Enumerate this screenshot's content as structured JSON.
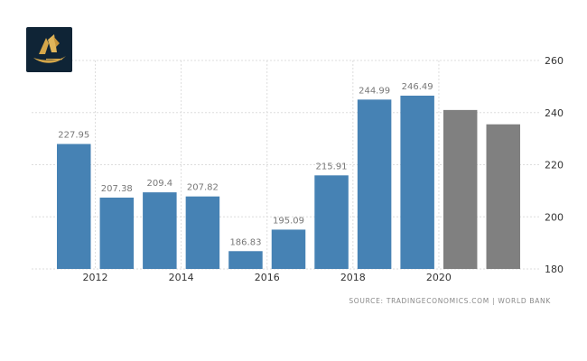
{
  "chart_data": {
    "type": "bar",
    "categories": [
      "2011",
      "2012",
      "2013",
      "2014",
      "2015",
      "2016",
      "2017",
      "2018",
      "2019",
      "2020",
      "2021"
    ],
    "values": [
      227.95,
      207.38,
      209.4,
      207.82,
      186.83,
      195.09,
      215.91,
      244.99,
      246.49,
      241,
      235.5
    ],
    "data_labels": [
      "227.95",
      "207.38",
      "209.4",
      "207.82",
      "186.83",
      "195.09",
      "215.91",
      "244.99",
      "246.49",
      "",
      ""
    ],
    "bar_kinds": [
      "actual",
      "actual",
      "actual",
      "actual",
      "actual",
      "actual",
      "actual",
      "actual",
      "actual",
      "forecast",
      "forecast"
    ],
    "x_tick_labels": [
      "2012",
      "2014",
      "2016",
      "2018",
      "2020"
    ],
    "y_ticks": [
      180,
      200,
      220,
      240,
      260
    ],
    "ylim": [
      180,
      260
    ],
    "y_axis_side": "right",
    "grid": true,
    "title": "",
    "xlabel": "",
    "ylabel": ""
  },
  "colors": {
    "actual": "#4682b4",
    "forecast": "#808080",
    "grid": "#dddddd",
    "label": "#777777",
    "tick": "#333333"
  },
  "source": "SOURCE: TRADINGECONOMICS.COM | WORLD BANK",
  "logo": {
    "icon": "brand-logo-icon"
  }
}
